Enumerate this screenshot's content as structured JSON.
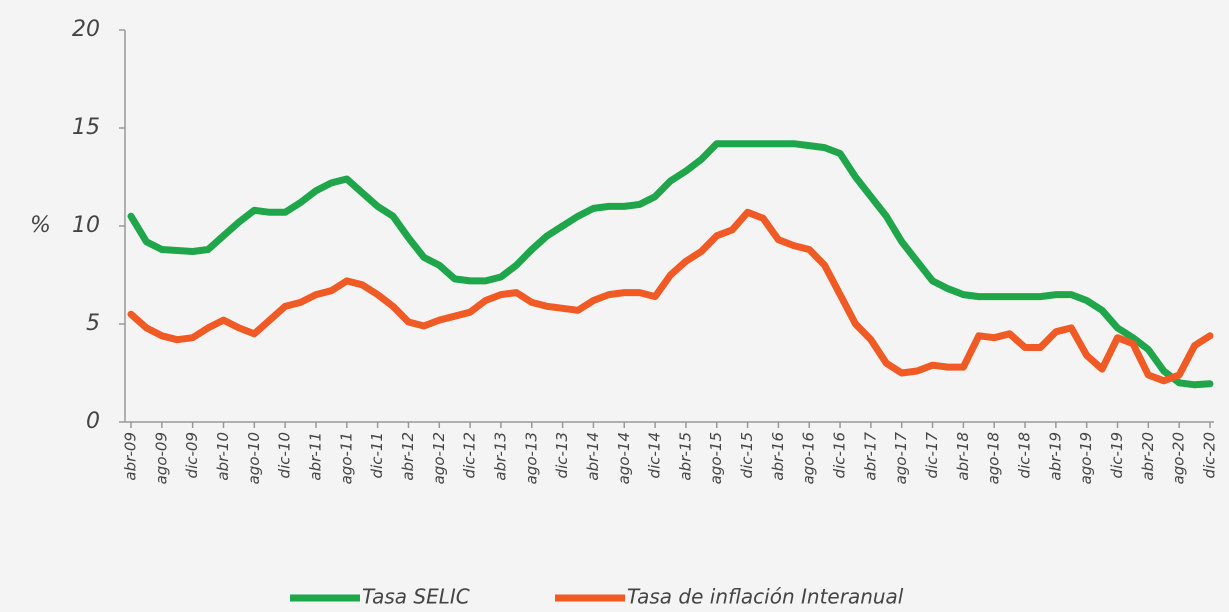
{
  "chart_data": {
    "type": "line",
    "ylabel": "%",
    "categories": [
      "abr-09",
      null,
      "ago-09",
      null,
      "dic-09",
      null,
      "abr-10",
      null,
      "ago-10",
      null,
      "dic-10",
      null,
      "abr-11",
      null,
      "ago-11",
      null,
      "dic-11",
      null,
      "abr-12",
      null,
      "ago-12",
      null,
      "dic-12",
      null,
      "abr-13",
      null,
      "ago-13",
      null,
      "dic-13",
      null,
      "abr-14",
      null,
      "ago-14",
      null,
      "dic-14",
      null,
      "abr-15",
      null,
      "ago-15",
      null,
      "dic-15",
      null,
      "abr-16",
      null,
      "ago-16",
      null,
      "dic-16",
      null,
      "abr-17",
      null,
      "ago-17",
      null,
      "dic-17",
      null,
      "abr-18",
      null,
      "ago-18",
      null,
      "dic-18",
      null,
      "abr-19",
      null,
      "ago-19",
      null,
      "dic-19",
      null,
      "abr-20",
      null,
      "ago-20",
      null,
      "dic-20"
    ],
    "series": [
      {
        "name": "Tasa SELIC",
        "color": "#1fa64a",
        "values": [
          10.5,
          9.2,
          8.8,
          8.75,
          8.7,
          8.8,
          9.5,
          10.2,
          10.8,
          10.7,
          10.7,
          11.2,
          11.8,
          12.2,
          12.4,
          11.7,
          11.0,
          10.5,
          9.4,
          8.4,
          8.0,
          7.3,
          7.2,
          7.2,
          7.4,
          8.0,
          8.8,
          9.5,
          10.0,
          10.5,
          10.9,
          11.0,
          11.0,
          11.1,
          11.5,
          12.3,
          12.8,
          13.4,
          14.2,
          14.2,
          14.2,
          14.2,
          14.2,
          14.2,
          14.1,
          14.0,
          13.7,
          12.5,
          11.5,
          10.5,
          9.2,
          8.2,
          7.2,
          6.8,
          6.5,
          6.4,
          6.4,
          6.4,
          6.4,
          6.4,
          6.5,
          6.5,
          6.2,
          5.7,
          4.8,
          4.3,
          3.7,
          2.6,
          2.0,
          1.9,
          1.95
        ]
      },
      {
        "name": "Tasa de inflación Interanual",
        "color": "#f05a24",
        "values": [
          5.5,
          4.8,
          4.4,
          4.2,
          4.3,
          4.8,
          5.2,
          4.8,
          4.5,
          5.2,
          5.9,
          6.1,
          6.5,
          6.7,
          7.2,
          7.0,
          6.5,
          5.9,
          5.1,
          4.9,
          5.2,
          5.4,
          5.6,
          6.2,
          6.5,
          6.6,
          6.1,
          5.9,
          5.8,
          5.7,
          6.2,
          6.5,
          6.6,
          6.6,
          6.4,
          7.5,
          8.2,
          8.7,
          9.5,
          9.8,
          10.7,
          10.4,
          9.3,
          9.0,
          8.8,
          8.0,
          6.5,
          5.0,
          4.2,
          3.0,
          2.5,
          2.6,
          2.9,
          2.8,
          2.8,
          4.4,
          4.3,
          4.5,
          3.8,
          3.8,
          4.6,
          4.8,
          3.4,
          2.7,
          4.3,
          4.0,
          2.4,
          2.1,
          2.4,
          3.9,
          4.4
        ]
      }
    ],
    "ylim": [
      0,
      20
    ],
    "yticks": [
      0,
      5,
      10,
      15,
      20
    ],
    "legend": "bottom"
  }
}
